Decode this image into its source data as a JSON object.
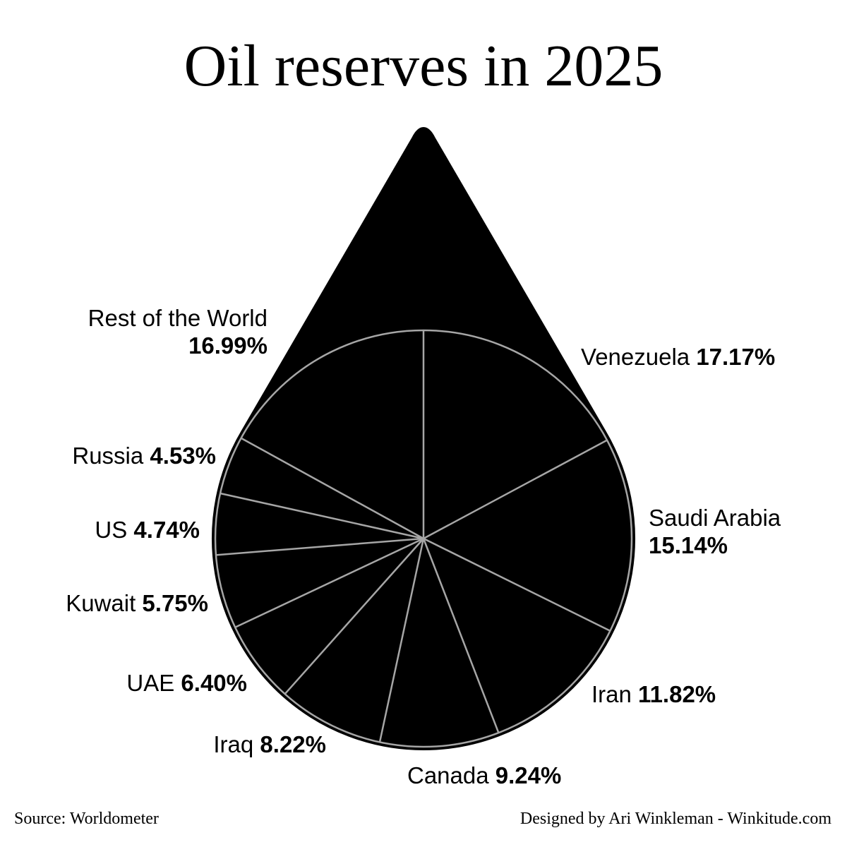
{
  "title": "Oil reserves in 2025",
  "footer": {
    "source": "Source: Worldometer",
    "credit": "Designed by Ari Winkleman - Winkitude.com"
  },
  "colors": {
    "background": "#ffffff",
    "fill": "#000000",
    "divider": "#a6a6a6"
  },
  "chart_data": {
    "type": "pie",
    "unit": "%",
    "slices": [
      {
        "label": "Venezuela",
        "value": 17.17,
        "display": "17.17%"
      },
      {
        "label": "Saudi Arabia",
        "value": 15.14,
        "display": "15.14%"
      },
      {
        "label": "Iran",
        "value": 11.82,
        "display": "11.82%"
      },
      {
        "label": "Canada",
        "value": 9.24,
        "display": "9.24%"
      },
      {
        "label": "Iraq",
        "value": 8.22,
        "display": "8.22%"
      },
      {
        "label": "UAE",
        "value": 6.4,
        "display": "6.40%"
      },
      {
        "label": "Kuwait",
        "value": 5.75,
        "display": "5.75%"
      },
      {
        "label": "US",
        "value": 4.74,
        "display": "4.74%"
      },
      {
        "label": "Russia",
        "value": 4.53,
        "display": "4.53%"
      },
      {
        "label": "Rest of the World",
        "value": 16.99,
        "display": "16.99%"
      }
    ]
  }
}
